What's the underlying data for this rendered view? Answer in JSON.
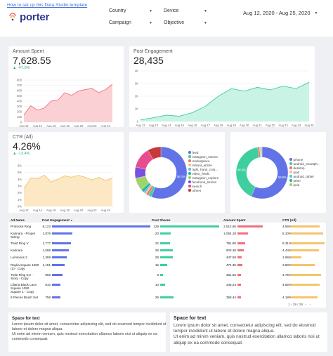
{
  "header": {
    "help_link": "How to set up this Data Studio template",
    "logo_text": "porter",
    "filters": [
      {
        "label": "Country"
      },
      {
        "label": "Device"
      },
      {
        "label": "Campaign"
      },
      {
        "label": "Objective"
      }
    ],
    "date_range": "Aug 12, 2020 - Aug 25, 2020",
    "accent": "#3b6fd8"
  },
  "kpis": {
    "amount_spent": {
      "label": "Amount Spent",
      "value": "7,628.55",
      "delta": "▲ -47.0%"
    },
    "post_engagement": {
      "label": "Post Engagement",
      "value": "28,435",
      "delta": ""
    },
    "ctr": {
      "label": "CTR (All)",
      "value": "4.26%",
      "delta": "▲ -13.4%"
    }
  },
  "chart_data": [
    {
      "type": "area",
      "title": "Amount Spent",
      "x": [
        "Aug 12",
        "Aug 13",
        "Aug 14",
        "Aug 15",
        "Aug 16",
        "Aug 17",
        "Aug 18",
        "Aug 19",
        "Aug 20",
        "Aug 21",
        "Aug 22",
        "Aug 23",
        "Aug 24",
        "Aug 25"
      ],
      "x_ticks": [
        "Aug 12",
        "Aug 14",
        "Aug 16",
        "Aug 18",
        "Aug 20",
        "Aug 22",
        "Aug 24"
      ],
      "values": [
        140,
        310,
        230,
        270,
        400,
        420,
        560,
        510,
        590,
        620,
        640,
        560,
        620,
        720
      ],
      "y_ticks": [
        "0",
        "100",
        "200",
        "300",
        "400",
        "500",
        "600",
        "700",
        "800"
      ],
      "ylim": [
        0,
        800
      ],
      "color": "#f36f7c",
      "fill": "#fbd0d4"
    },
    {
      "type": "area",
      "title": "Post Engagement",
      "x": [
        "Aug 12",
        "Aug 13",
        "Aug 14",
        "Aug 15",
        "Aug 16",
        "Aug 17",
        "Aug 18",
        "Aug 19",
        "Aug 20",
        "Aug 21",
        "Aug 22",
        "Aug 23",
        "Aug 24",
        "Aug 25"
      ],
      "x_ticks": [
        "Aug 12",
        "Aug 13",
        "Aug 14",
        "Aug 15",
        "Aug 16",
        "Aug 17",
        "Aug 18",
        "Aug 19",
        "Aug 20",
        "Aug 21",
        "Aug 22",
        "Aug 23",
        "Aug 24",
        "Aug 25"
      ],
      "values": [
        120,
        300,
        500,
        420,
        700,
        1200,
        2000,
        2600,
        2400,
        2700,
        2500,
        2800,
        2600,
        3100
      ],
      "y_ticks": [
        "0",
        "1K",
        "2K",
        "3K",
        "4K"
      ],
      "ylim": [
        0,
        4000
      ],
      "color": "#3fcf9e",
      "fill": "#c9f3e4"
    },
    {
      "type": "area",
      "title": "CTR (All)",
      "x": [
        "Aug 12",
        "Aug 13",
        "Aug 14",
        "Aug 15",
        "Aug 16",
        "Aug 17",
        "Aug 18",
        "Aug 19",
        "Aug 20",
        "Aug 21",
        "Aug 22",
        "Aug 23",
        "Aug 24",
        "Aug 25"
      ],
      "x_ticks": [
        "Aug 12",
        "Aug 14",
        "Aug 16",
        "Aug 18",
        "Aug 20",
        "Aug 22",
        "Aug 24"
      ],
      "values": [
        2.6,
        4.2,
        4.1,
        4.6,
        3.6,
        4.0,
        4.5,
        4.3,
        4.6,
        4.3,
        3.9,
        4.3,
        3.8,
        4.2
      ],
      "y_ticks": [
        "0%",
        "1%",
        "2%",
        "3%",
        "4%",
        "5%",
        "6%"
      ],
      "ylim": [
        0,
        6
      ],
      "color": "#f5c46a",
      "fill": "#fce8c4"
    },
    {
      "type": "pie",
      "donut": true,
      "labels": [
        "feed",
        "instagram_stories",
        "marketplace",
        "instant_article",
        "right_hand_colu...",
        "video_feeds",
        "instagram_explore",
        "facebook_stories",
        "search",
        "others"
      ],
      "values": [
        56.1,
        2.0,
        1.5,
        1.0,
        1.0,
        2.0,
        8.0,
        7.0,
        13.0,
        8.4
      ],
      "slice_labels": [
        "56.1%",
        "",
        "",
        "",
        "",
        "",
        "",
        "",
        "",
        ""
      ],
      "colors": [
        "#6173e6",
        "#3fcf9e",
        "#f36f7c",
        "#f5c46a",
        "#5bbcf2",
        "#2fb4a1",
        "#9fd36b",
        "#7b4fe0",
        "#e94c8c",
        "#c73a3a"
      ]
    },
    {
      "type": "pie",
      "donut": true,
      "labels": [
        "iphone",
        "android_smartph...",
        "desktop",
        "ipad",
        "android_tablet",
        "other",
        "ipod"
      ],
      "values": [
        56.9,
        40.3,
        1.2,
        0.6,
        0.4,
        0.4,
        0.2
      ],
      "slice_labels": [
        "56.9%",
        "40.3%",
        "",
        "",
        "",
        "",
        ""
      ],
      "colors": [
        "#6173e6",
        "#3fcf9e",
        "#f36f7c",
        "#f5c46a",
        "#5bbcf2",
        "#2fb4a1",
        "#9fd36b"
      ]
    }
  ],
  "table": {
    "headers": {
      "ad_name": "Ad Name",
      "post_engagement": "Post Engagement",
      "sort_icon": "▼",
      "post_shares": "Post Shares",
      "amount_spent": "Amount Spent",
      "ctr": "CTR (All)"
    },
    "rows": [
      {
        "name": [
          "Primrose Ring"
        ],
        "pe": "9,123",
        "pe_v": 9123,
        "ps": "129",
        "ps_v": 129,
        "as": "2,512.86",
        "as_v": 2512.86,
        "ctr": "4.56%",
        "ctr_v": 4.56
      },
      {
        "name": [
          "Karinara - Proper",
          "Sizing"
        ],
        "pe": "1,876",
        "pe_v": 1876,
        "ps": "23",
        "ps_v": 23,
        "as": "1,064.18",
        "as_v": 1064.18,
        "ctr": "5.10%",
        "ctr_v": 5.1
      },
      {
        "name": [
          "Twist Ring V"
        ],
        "pe": "1,777",
        "pe_v": 1777,
        "ps": "22",
        "ps_v": 22,
        "as": "791.80",
        "as_v": 791.8,
        "ctr": "5.31%",
        "ctr_v": 5.31
      },
      {
        "name": [
          "Karinara"
        ],
        "pe": "1,596",
        "pe_v": 1596,
        "ps": "28",
        "ps_v": 28,
        "as": "603.38",
        "as_v": 603.38,
        "ctr": "4.44%",
        "ctr_v": 4.44
      },
      {
        "name": [
          "Luminous 2"
        ],
        "pe": "1,369",
        "pe_v": 1369,
        "ps": "28",
        "ps_v": 28,
        "as": "447.59",
        "as_v": 447.59,
        "ctr": "1.66%",
        "ctr_v": 1.66
      },
      {
        "name": [
          "Raylia Square 1080",
          "(1) - Copy"
        ],
        "pe": "1,151",
        "pe_v": 1151,
        "ps": "15",
        "ps_v": 15,
        "as": "474.35",
        "as_v": 474.35,
        "ctr": "3.80%",
        "ctr_v": 3.8
      },
      {
        "name": [
          "Twist Ring 5:3 -",
          "Story - Copy"
        ],
        "pe": "966",
        "pe_v": 966,
        "ps": "6",
        "ps_v": 6,
        "as": "361.66",
        "as_v": 361.66,
        "ctr": "4.75%",
        "ctr_v": 4.75
      },
      {
        "name": [
          "Liliana Black Lace",
          "Square 1080",
          "Square 1 - Copy"
        ],
        "pe": "810",
        "pe_v": 810,
        "ps": "10",
        "ps_v": 10,
        "as": "345.24",
        "as_v": 345.24,
        "ctr": "4.55%",
        "ctr_v": 4.55
      },
      {
        "name": [
          "8 Pieces Brush Set"
        ],
        "pe": "756",
        "pe_v": 756,
        "ps": "29",
        "ps_v": 29,
        "as": "358.44",
        "as_v": 358.44,
        "ctr": "4.18%",
        "ctr_v": 4.18
      }
    ],
    "colors": {
      "pe": "#6173e6",
      "ps": "#3fcf9e",
      "as": "#f36f7c",
      "ctr": "#f5c46a"
    },
    "pager": {
      "range": "1 - 28 / 28",
      "prev": "‹",
      "next": "›"
    }
  },
  "text_cards": [
    {
      "title": "Space for text",
      "body": "Lorem ipsum dolor sit amet, consectetur adipiscing elit, sed do eiusmod tempor incididunt ut labore et dolore magna aliqua.\nUt enim ad minim veniam, quis nostrud exercitation ullamco laboris nisi ut aliquip ex ea commodo consequat."
    },
    {
      "title": "Space for text",
      "body": "Lorem ipsum dolor sit amet, consectetur adipiscing elit, sed do eiusmod tempor incididunt ut labore et dolore magna aliqua.\nUt enim ad minim veniam, quis nostrud exercitation ullamco laboris nisi ut aliquip ex ea commodo consequat."
    }
  ]
}
